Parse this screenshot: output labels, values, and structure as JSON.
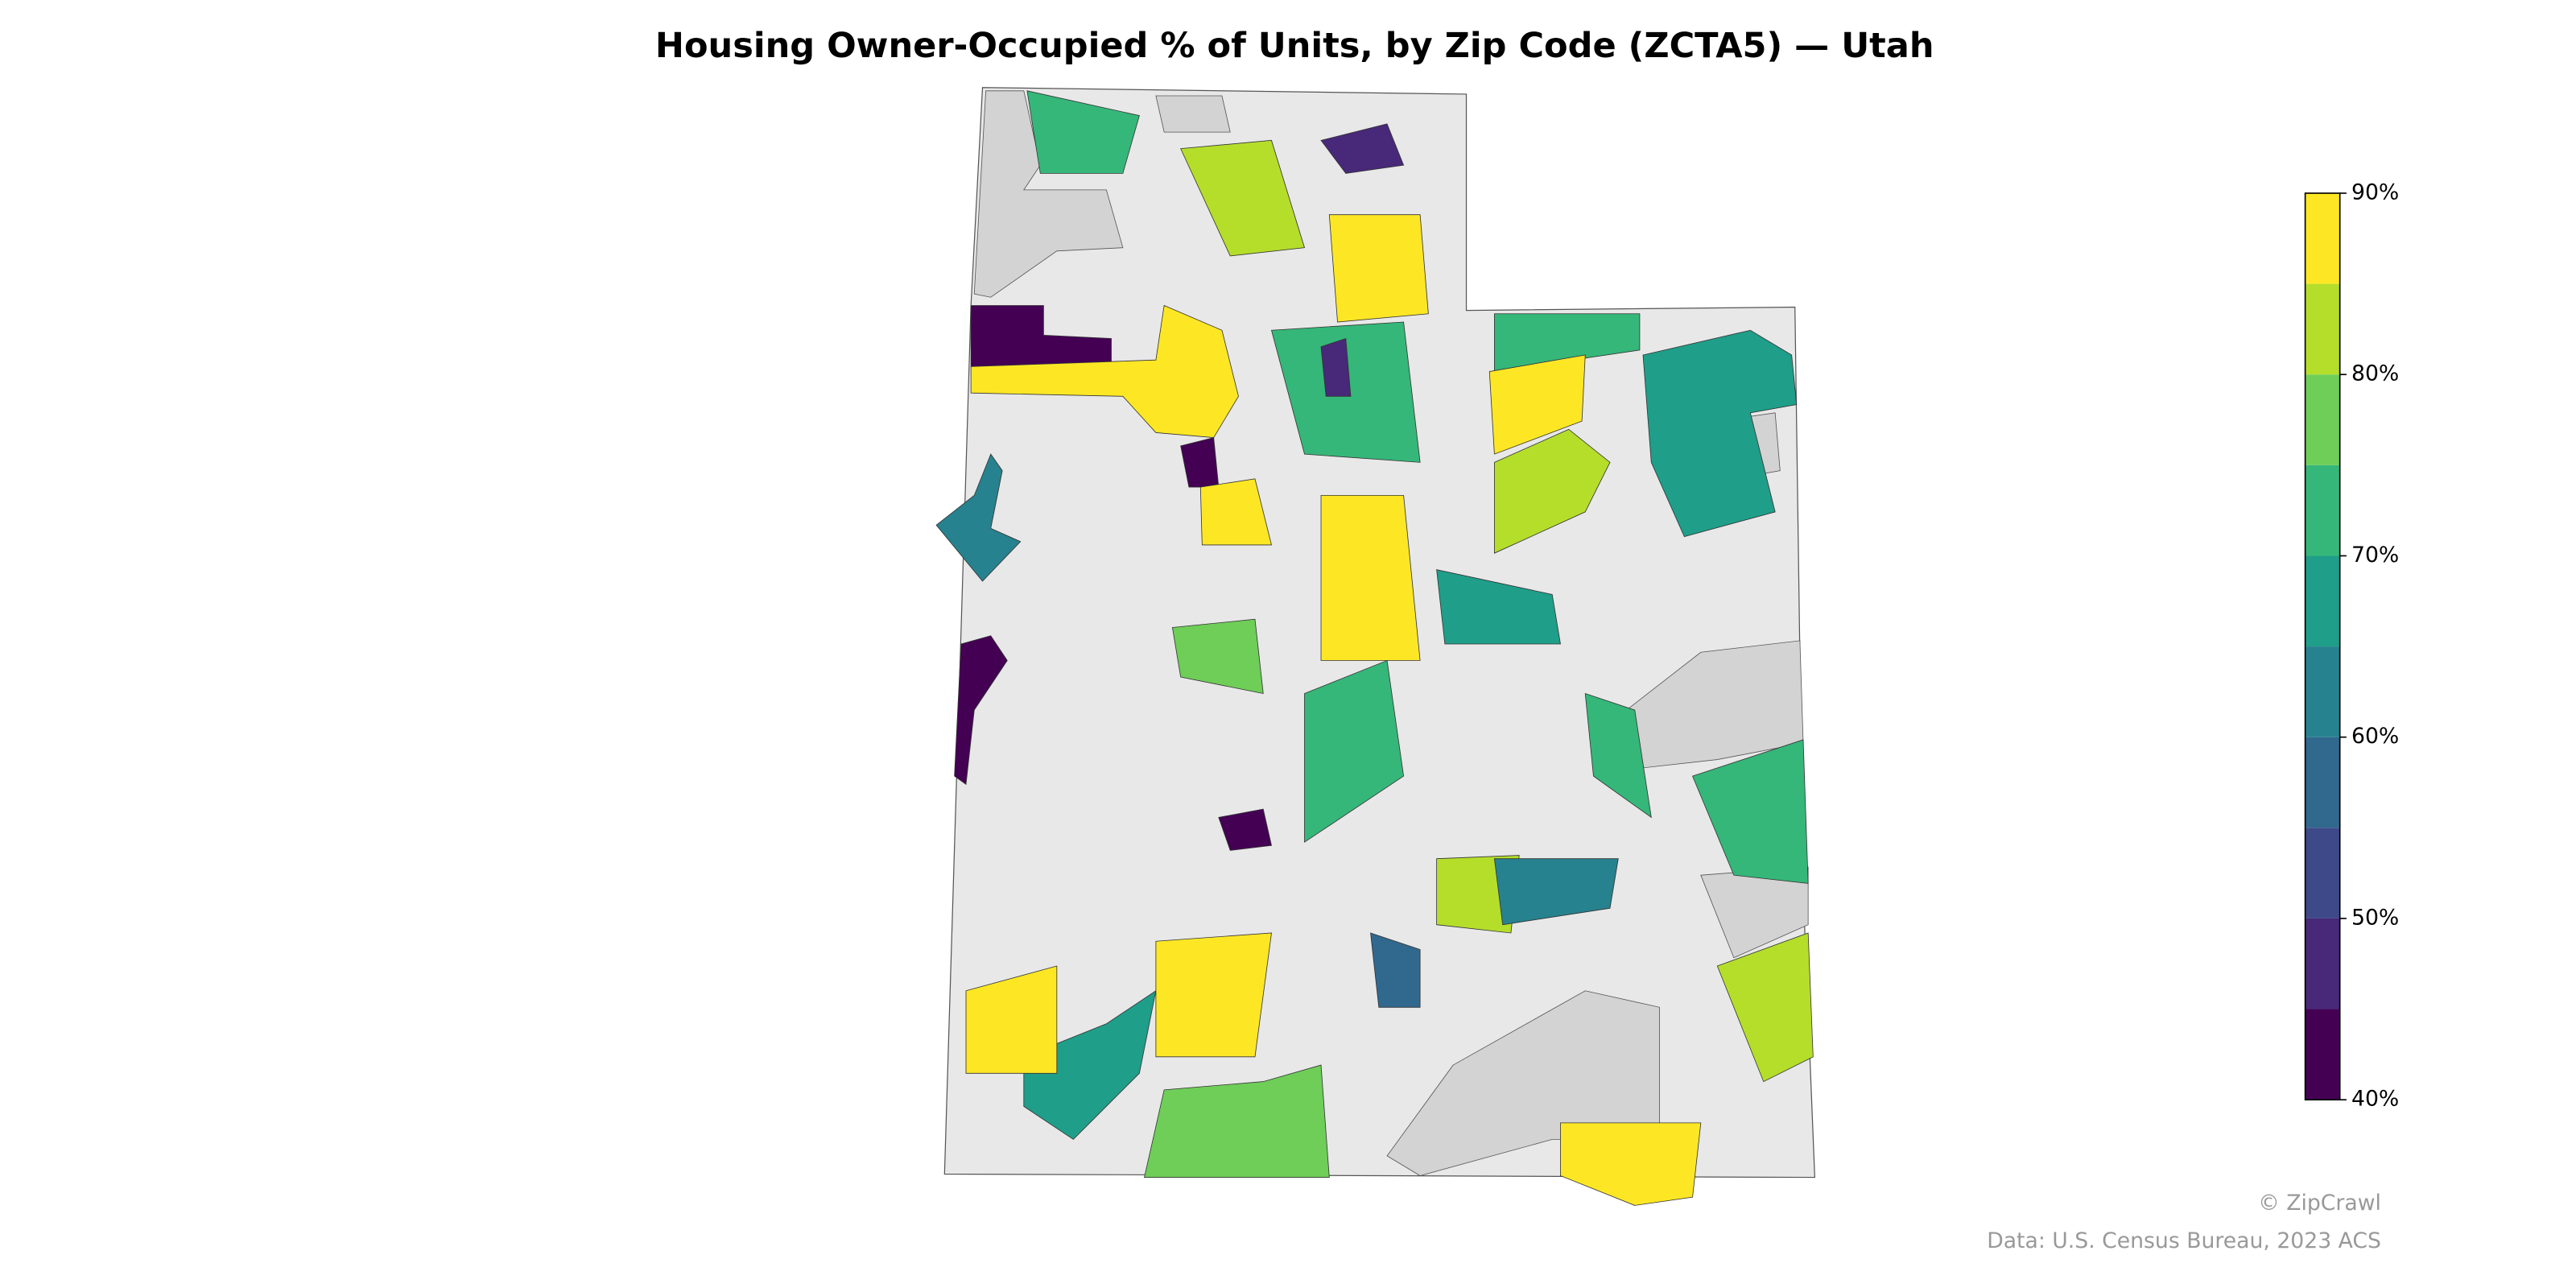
{
  "chart_data": {
    "type": "choropleth",
    "title": "Housing Owner-Occupied % of Units, by Zip Code (ZCTA5) — Utah",
    "values": [
      42,
      88,
      62,
      42,
      68,
      72,
      88,
      82,
      72,
      82,
      88,
      76,
      66,
      88,
      72,
      46,
      82,
      88,
      72,
      48,
      88,
      68,
      42,
      82,
      60,
      58,
      88,
      72,
      42,
      88,
      72,
      76
    ],
    "clim": [
      40,
      90
    ],
    "colors": [
      "#440154",
      "#482878",
      "#3e4989",
      "#31688e",
      "#26828e",
      "#1f9e89",
      "#35b779",
      "#6ece58",
      "#b5de2b",
      "#fde725"
    ],
    "ticks": [
      {
        "value": 40,
        "label": "40%"
      },
      {
        "value": 50,
        "label": "50%"
      },
      {
        "value": 60,
        "label": "60%"
      },
      {
        "value": 70,
        "label": "70%"
      },
      {
        "value": 80,
        "label": "80%"
      },
      {
        "value": 90,
        "label": "90%"
      }
    ],
    "credit": "© ZipCrawl",
    "source": "Data: U.S. Census Bureau, 2023 ACS"
  }
}
